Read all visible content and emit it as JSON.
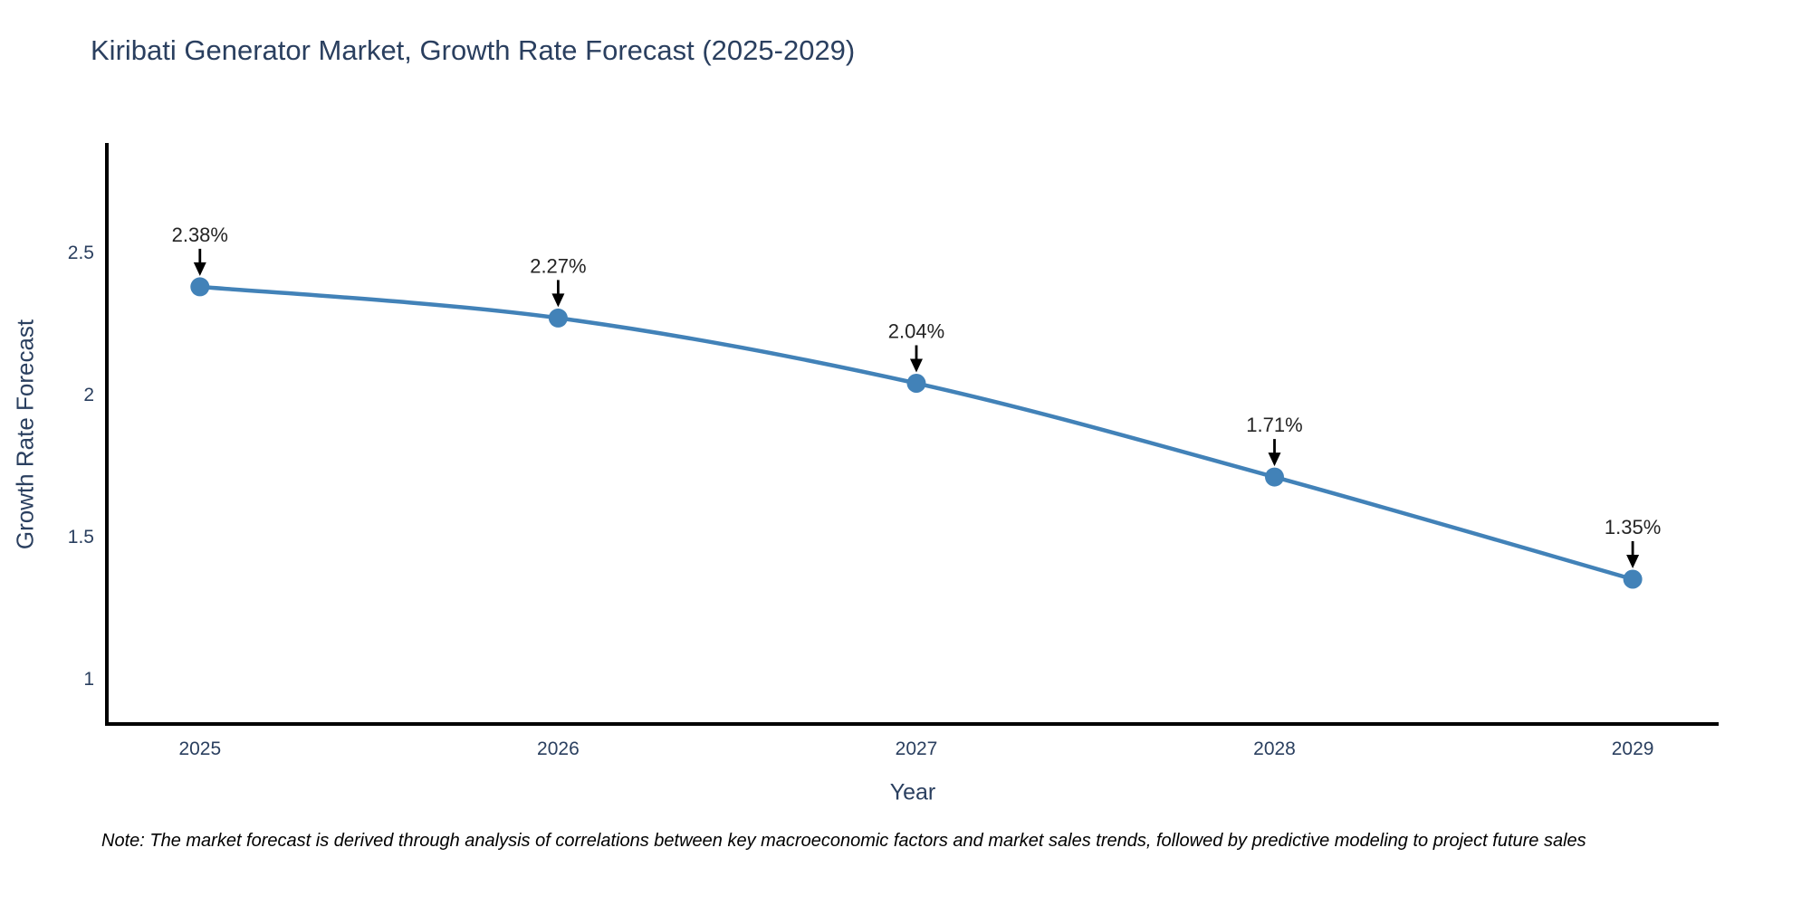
{
  "chart_data": {
    "type": "line",
    "title": "Kiribati Generator Market, Growth Rate Forecast (2025-2029)",
    "xlabel": "Year",
    "ylabel": "Growth Rate Forecast",
    "x": [
      2025,
      2026,
      2027,
      2028,
      2029
    ],
    "y": [
      2.38,
      2.27,
      2.04,
      1.71,
      1.35
    ],
    "point_labels": [
      "2.38%",
      "2.27%",
      "2.04%",
      "1.71%",
      "1.35%"
    ],
    "xtick_values": [
      2025,
      2026,
      2027,
      2028,
      2029
    ],
    "xtick_labels": [
      "2025",
      "2026",
      "2027",
      "2028",
      "2029"
    ],
    "ytick_values": [
      1,
      1.5,
      2,
      2.5
    ],
    "ytick_labels": [
      "1",
      "1.5",
      "2",
      "2.5"
    ],
    "xlim": [
      2024.74,
      2029.24
    ],
    "ylim": [
      0.84,
      2.88
    ],
    "grid": false,
    "legend": "none",
    "line_shape": "spline",
    "line_color": "#4282b8",
    "marker_color": "#4282b8",
    "axis_color": "#000000",
    "tick_text_color": "#2a3f5f",
    "annotation_text_color": "#242424",
    "arrow_color": "#000000"
  },
  "note": {
    "text": "Note: The market forecast is derived through analysis of correlations between key macroeconomic factors and market sales trends, followed by predictive modeling to project future sales"
  }
}
